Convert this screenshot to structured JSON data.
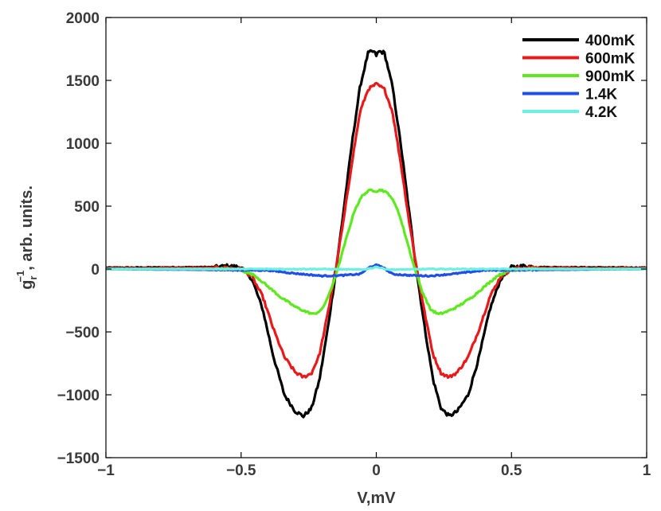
{
  "chart_data": {
    "type": "line",
    "title": "",
    "xlabel": "V,mV",
    "ylabel": "g_r^-1, arb. units.",
    "ylabel_parts": {
      "base": "g",
      "sub": "r",
      "sup": "−1",
      "rest": ", arb. units."
    },
    "xlim": [
      -1,
      1
    ],
    "ylim": [
      -1500,
      2000
    ],
    "xticks": [
      -1,
      -0.5,
      0,
      0.5,
      1
    ],
    "xtick_labels": [
      "−1",
      "−0.5",
      "0",
      "0.5",
      "1"
    ],
    "yticks": [
      -1500,
      -1000,
      -500,
      0,
      500,
      1000,
      1500,
      2000
    ],
    "ytick_labels": [
      "−1500",
      "−1000",
      "−500",
      "0",
      "500",
      "1000",
      "1500",
      "2000"
    ],
    "grid": false,
    "legend_position": "top-right",
    "series": [
      {
        "name": "400mK",
        "color": "#000000",
        "x": [
          -1.0,
          -0.6,
          -0.55,
          -0.5,
          -0.46,
          -0.42,
          -0.38,
          -0.34,
          -0.3,
          -0.27,
          -0.24,
          -0.21,
          -0.18,
          -0.15,
          -0.12,
          -0.09,
          -0.06,
          -0.03,
          -0.01,
          0.0,
          0.01,
          0.03,
          0.06,
          0.09,
          0.12,
          0.15,
          0.18,
          0.21,
          0.24,
          0.27,
          0.3,
          0.34,
          0.38,
          0.42,
          0.46,
          0.5,
          0.55,
          0.6,
          1.0
        ],
        "y": [
          10,
          15,
          25,
          15,
          -80,
          -320,
          -700,
          -1000,
          -1130,
          -1170,
          -1110,
          -880,
          -480,
          -30,
          480,
          1000,
          1450,
          1720,
          1730,
          1700,
          1730,
          1720,
          1450,
          1000,
          480,
          -30,
          -480,
          -880,
          -1110,
          -1170,
          -1130,
          -1000,
          -700,
          -320,
          -80,
          15,
          25,
          15,
          10
        ]
      },
      {
        "name": "600mK",
        "color": "#e8191b",
        "x": [
          -1.0,
          -0.55,
          -0.5,
          -0.46,
          -0.42,
          -0.38,
          -0.34,
          -0.3,
          -0.27,
          -0.24,
          -0.21,
          -0.18,
          -0.15,
          -0.12,
          -0.09,
          -0.06,
          -0.03,
          0.0,
          0.03,
          0.06,
          0.09,
          0.12,
          0.15,
          0.18,
          0.21,
          0.24,
          0.27,
          0.3,
          0.34,
          0.38,
          0.42,
          0.46,
          0.5,
          0.55,
          1.0
        ],
        "y": [
          5,
          10,
          0,
          -60,
          -220,
          -480,
          -700,
          -820,
          -860,
          -830,
          -680,
          -360,
          0,
          400,
          850,
          1250,
          1430,
          1470,
          1430,
          1250,
          850,
          400,
          0,
          -360,
          -680,
          -830,
          -860,
          -820,
          -700,
          -480,
          -220,
          -60,
          0,
          10,
          5
        ]
      },
      {
        "name": "900mK",
        "color": "#5ee81e",
        "x": [
          -1.0,
          -0.55,
          -0.5,
          -0.45,
          -0.4,
          -0.35,
          -0.3,
          -0.26,
          -0.23,
          -0.2,
          -0.17,
          -0.14,
          -0.11,
          -0.08,
          -0.05,
          -0.02,
          0.0,
          0.02,
          0.05,
          0.08,
          0.11,
          0.14,
          0.17,
          0.2,
          0.23,
          0.26,
          0.3,
          0.35,
          0.4,
          0.45,
          0.5,
          0.55,
          1.0
        ],
        "y": [
          0,
          0,
          -10,
          -50,
          -140,
          -230,
          -300,
          -340,
          -360,
          -320,
          -180,
          20,
          250,
          470,
          590,
          630,
          620,
          630,
          590,
          470,
          250,
          20,
          -180,
          -320,
          -360,
          -340,
          -300,
          -230,
          -140,
          -50,
          -10,
          0,
          0
        ]
      },
      {
        "name": "1.4K",
        "color": "#1f4fe8",
        "x": [
          -1.0,
          -0.4,
          -0.3,
          -0.2,
          -0.12,
          -0.06,
          -0.02,
          0.0,
          0.02,
          0.06,
          0.12,
          0.2,
          0.3,
          0.4,
          1.0
        ],
        "y": [
          0,
          -10,
          -35,
          -55,
          -50,
          -40,
          20,
          30,
          20,
          -40,
          -50,
          -55,
          -35,
          -10,
          0
        ]
      },
      {
        "name": "4.2K",
        "color": "#6ef0e0",
        "x": [
          -1.0,
          -0.2,
          -0.05,
          -0.01,
          0.0,
          0.01,
          0.05,
          0.2,
          1.0
        ],
        "y": [
          0,
          0,
          -5,
          10,
          20,
          10,
          -5,
          0,
          0
        ]
      }
    ]
  }
}
